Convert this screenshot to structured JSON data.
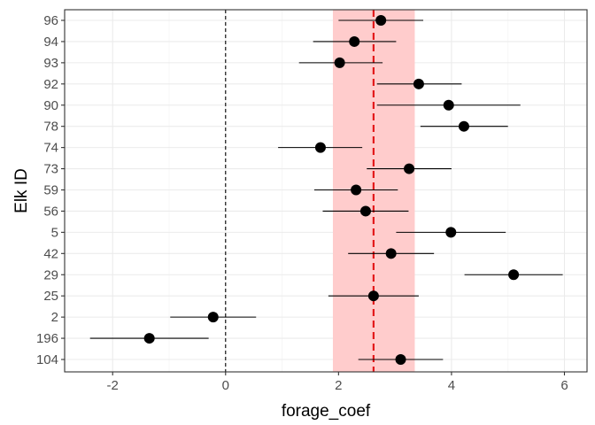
{
  "chart_data": {
    "type": "scatter",
    "subtype": "forest-plot-with-error-bars",
    "title": "",
    "xlabel": "forage_coef",
    "ylabel": "Elk ID",
    "xlim": [
      -2.85,
      6.4
    ],
    "x_ticks": [
      -2,
      0,
      2,
      4,
      6
    ],
    "x_tick_labels": [
      "-2",
      "0",
      "2",
      "4",
      "6"
    ],
    "grid": true,
    "legend": "none",
    "categories_top_to_bottom": [
      "96",
      "94",
      "93",
      "92",
      "90",
      "78",
      "74",
      "73",
      "59",
      "56",
      "5",
      "42",
      "29",
      "25",
      "2",
      "196",
      "104"
    ],
    "estimates": [
      2.75,
      2.28,
      2.02,
      3.42,
      3.95,
      4.22,
      1.68,
      3.25,
      2.31,
      2.48,
      3.99,
      2.93,
      5.1,
      2.62,
      -0.22,
      -1.35,
      3.1
    ],
    "ci_low": [
      2.0,
      1.55,
      1.3,
      2.68,
      2.68,
      3.45,
      0.93,
      2.5,
      1.57,
      1.72,
      3.02,
      2.17,
      4.23,
      1.82,
      -0.98,
      -2.4,
      2.35
    ],
    "ci_high": [
      3.5,
      3.02,
      2.78,
      4.18,
      5.22,
      5.0,
      2.42,
      4.0,
      3.05,
      3.24,
      4.96,
      3.69,
      5.97,
      3.42,
      0.54,
      -0.3,
      3.85
    ],
    "reference_line": {
      "x": 0,
      "style": "dashed",
      "color": "#000000"
    },
    "mean_line": {
      "x": 2.62,
      "style": "dashed",
      "color": "#e31a1c"
    },
    "mean_band": {
      "x_min": 1.9,
      "x_max": 3.35,
      "color": "#ffcccc"
    },
    "point_color": "#000000"
  },
  "colors": {
    "panel_border": "#333333",
    "grid_major": "#ebebeb",
    "grid_minor": "#f5f5f5"
  }
}
